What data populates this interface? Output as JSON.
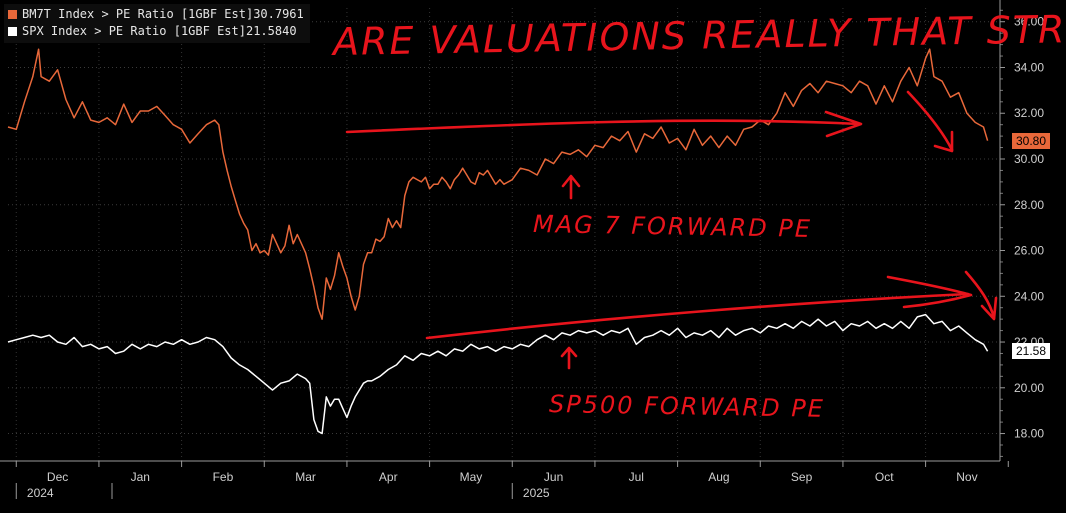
{
  "legend": [
    {
      "label": "BM7T Index > PE Ratio [1GBF Est]",
      "value": "30.7961",
      "color": "#e8683a"
    },
    {
      "label": "SPX Index > PE Ratio [1GBF Est]",
      "value": "21.5840",
      "color": "#ffffff"
    }
  ],
  "badges": {
    "bm7t": "30.80",
    "spx": "21.58"
  },
  "annotations": {
    "title": "ARE VALUATIONS REALLY THAT STRETCHED?",
    "mag7": "MAG 7 FORWARD PE",
    "spx": "SP500 FORWARD PE"
  },
  "chart_data": {
    "type": "line",
    "ylim": [
      16.8,
      36.6
    ],
    "y_ticks": [
      "18.00",
      "20.00",
      "22.00",
      "24.00",
      "26.00",
      "28.00",
      "30.00",
      "32.00",
      "34.00",
      "36.00"
    ],
    "x_ticks": [
      {
        "label": "Dec",
        "sub": "2024",
        "pos": 3.7
      },
      {
        "label": "Jan",
        "pos": 4.7
      },
      {
        "label": "Feb",
        "pos": 5.7
      },
      {
        "label": "Mar",
        "pos": 6.7
      },
      {
        "label": "Apr",
        "pos": 7.7
      },
      {
        "label": "May",
        "pos": 8.7
      },
      {
        "label": "Jun",
        "sub": "2025",
        "pos": 9.7
      },
      {
        "label": "Jul",
        "pos": 10.7
      },
      {
        "label": "Aug",
        "pos": 11.7
      },
      {
        "label": "Sep",
        "pos": 12.7
      },
      {
        "label": "Oct",
        "pos": 13.7
      },
      {
        "label": "Nov",
        "pos": 14.7
      }
    ],
    "x_range": [
      3.1,
      15.1
    ],
    "series": [
      {
        "name": "BM7T Index > PE Ratio [1GBF Est]",
        "color": "#e8683a",
        "points": [
          [
            3.1,
            31.4
          ],
          [
            3.2,
            31.3
          ],
          [
            3.3,
            32.5
          ],
          [
            3.4,
            33.6
          ],
          [
            3.47,
            34.8
          ],
          [
            3.5,
            33.6
          ],
          [
            3.6,
            33.4
          ],
          [
            3.7,
            33.9
          ],
          [
            3.8,
            32.6
          ],
          [
            3.9,
            31.8
          ],
          [
            4.0,
            32.5
          ],
          [
            4.1,
            31.7
          ],
          [
            4.2,
            31.6
          ],
          [
            4.3,
            31.8
          ],
          [
            4.4,
            31.5
          ],
          [
            4.5,
            32.4
          ],
          [
            4.6,
            31.6
          ],
          [
            4.7,
            32.1
          ],
          [
            4.8,
            32.1
          ],
          [
            4.9,
            32.3
          ],
          [
            5.0,
            31.9
          ],
          [
            5.1,
            31.5
          ],
          [
            5.2,
            31.3
          ],
          [
            5.3,
            30.7
          ],
          [
            5.4,
            31.1
          ],
          [
            5.5,
            31.5
          ],
          [
            5.6,
            31.7
          ],
          [
            5.65,
            31.5
          ],
          [
            5.7,
            30.3
          ],
          [
            5.75,
            29.5
          ],
          [
            5.8,
            28.8
          ],
          [
            5.85,
            28.2
          ],
          [
            5.9,
            27.6
          ],
          [
            5.95,
            27.2
          ],
          [
            6.0,
            26.9
          ],
          [
            6.05,
            26.0
          ],
          [
            6.1,
            26.3
          ],
          [
            6.15,
            25.9
          ],
          [
            6.2,
            26.0
          ],
          [
            6.25,
            25.8
          ],
          [
            6.3,
            26.7
          ],
          [
            6.35,
            26.3
          ],
          [
            6.4,
            25.9
          ],
          [
            6.45,
            26.2
          ],
          [
            6.5,
            27.1
          ],
          [
            6.55,
            26.3
          ],
          [
            6.6,
            26.7
          ],
          [
            6.7,
            25.9
          ],
          [
            6.75,
            25.2
          ],
          [
            6.8,
            24.4
          ],
          [
            6.85,
            23.5
          ],
          [
            6.9,
            23.0
          ],
          [
            6.95,
            24.8
          ],
          [
            7.0,
            24.3
          ],
          [
            7.05,
            24.9
          ],
          [
            7.1,
            25.9
          ],
          [
            7.15,
            25.3
          ],
          [
            7.2,
            24.8
          ],
          [
            7.25,
            24.0
          ],
          [
            7.3,
            23.4
          ],
          [
            7.35,
            24.0
          ],
          [
            7.4,
            25.4
          ],
          [
            7.45,
            25.9
          ],
          [
            7.5,
            25.9
          ],
          [
            7.55,
            26.5
          ],
          [
            7.6,
            26.4
          ],
          [
            7.65,
            26.6
          ],
          [
            7.7,
            27.4
          ],
          [
            7.75,
            27.0
          ],
          [
            7.8,
            27.3
          ],
          [
            7.85,
            27.0
          ],
          [
            7.9,
            28.4
          ],
          [
            7.95,
            29.0
          ],
          [
            8.0,
            29.2
          ],
          [
            8.05,
            29.1
          ],
          [
            8.1,
            29.0
          ],
          [
            8.15,
            29.2
          ],
          [
            8.2,
            28.7
          ],
          [
            8.25,
            28.9
          ],
          [
            8.3,
            28.9
          ],
          [
            8.35,
            29.2
          ],
          [
            8.4,
            29.0
          ],
          [
            8.45,
            28.7
          ],
          [
            8.5,
            29.1
          ],
          [
            8.55,
            29.3
          ],
          [
            8.6,
            29.6
          ],
          [
            8.65,
            29.3
          ],
          [
            8.7,
            29.0
          ],
          [
            8.75,
            28.9
          ],
          [
            8.8,
            29.4
          ],
          [
            8.85,
            29.3
          ],
          [
            8.9,
            29.5
          ],
          [
            9.0,
            28.9
          ],
          [
            9.05,
            29.1
          ],
          [
            9.1,
            28.9
          ],
          [
            9.2,
            29.1
          ],
          [
            9.3,
            29.6
          ],
          [
            9.4,
            29.5
          ],
          [
            9.5,
            29.3
          ],
          [
            9.6,
            30.0
          ],
          [
            9.7,
            29.8
          ],
          [
            9.8,
            30.3
          ],
          [
            9.9,
            30.2
          ],
          [
            10.0,
            30.4
          ],
          [
            10.1,
            30.1
          ],
          [
            10.2,
            30.6
          ],
          [
            10.3,
            30.5
          ],
          [
            10.4,
            31.0
          ],
          [
            10.5,
            30.8
          ],
          [
            10.6,
            31.2
          ],
          [
            10.7,
            30.3
          ],
          [
            10.8,
            31.1
          ],
          [
            10.9,
            30.9
          ],
          [
            11.0,
            31.4
          ],
          [
            11.1,
            30.7
          ],
          [
            11.2,
            30.9
          ],
          [
            11.3,
            30.4
          ],
          [
            11.4,
            31.3
          ],
          [
            11.5,
            30.6
          ],
          [
            11.6,
            31.0
          ],
          [
            11.7,
            30.5
          ],
          [
            11.8,
            31.0
          ],
          [
            11.9,
            30.6
          ],
          [
            12.0,
            31.3
          ],
          [
            12.1,
            31.4
          ],
          [
            12.2,
            31.7
          ],
          [
            12.3,
            31.5
          ],
          [
            12.4,
            32.0
          ],
          [
            12.5,
            32.9
          ],
          [
            12.6,
            32.3
          ],
          [
            12.7,
            33.0
          ],
          [
            12.8,
            33.3
          ],
          [
            12.9,
            32.9
          ],
          [
            13.0,
            33.4
          ],
          [
            13.1,
            33.3
          ],
          [
            13.2,
            33.2
          ],
          [
            13.3,
            32.9
          ],
          [
            13.4,
            33.4
          ],
          [
            13.5,
            33.2
          ],
          [
            13.6,
            32.4
          ],
          [
            13.7,
            33.2
          ],
          [
            13.8,
            32.5
          ],
          [
            13.9,
            33.4
          ],
          [
            14.0,
            34.0
          ],
          [
            14.1,
            33.2
          ],
          [
            14.2,
            34.4
          ],
          [
            14.25,
            34.8
          ],
          [
            14.3,
            33.6
          ],
          [
            14.4,
            33.4
          ],
          [
            14.5,
            32.7
          ],
          [
            14.6,
            32.9
          ],
          [
            14.7,
            32.0
          ],
          [
            14.8,
            31.6
          ],
          [
            14.9,
            31.4
          ],
          [
            14.95,
            30.8
          ]
        ]
      },
      {
        "name": "SPX Index > PE Ratio [1GBF Est]",
        "color": "#ffffff",
        "points": [
          [
            3.1,
            22.0
          ],
          [
            3.2,
            22.1
          ],
          [
            3.3,
            22.2
          ],
          [
            3.4,
            22.3
          ],
          [
            3.5,
            22.2
          ],
          [
            3.6,
            22.3
          ],
          [
            3.7,
            22.0
          ],
          [
            3.8,
            21.9
          ],
          [
            3.9,
            22.2
          ],
          [
            4.0,
            21.8
          ],
          [
            4.1,
            21.9
          ],
          [
            4.2,
            21.7
          ],
          [
            4.3,
            21.8
          ],
          [
            4.4,
            21.5
          ],
          [
            4.5,
            21.6
          ],
          [
            4.6,
            21.9
          ],
          [
            4.7,
            21.7
          ],
          [
            4.8,
            21.9
          ],
          [
            4.9,
            21.8
          ],
          [
            5.0,
            22.0
          ],
          [
            5.1,
            21.9
          ],
          [
            5.2,
            22.1
          ],
          [
            5.3,
            21.9
          ],
          [
            5.4,
            22.0
          ],
          [
            5.5,
            22.2
          ],
          [
            5.6,
            22.1
          ],
          [
            5.7,
            21.8
          ],
          [
            5.8,
            21.3
          ],
          [
            5.9,
            21.0
          ],
          [
            6.0,
            20.8
          ],
          [
            6.1,
            20.5
          ],
          [
            6.2,
            20.2
          ],
          [
            6.3,
            19.9
          ],
          [
            6.4,
            20.2
          ],
          [
            6.5,
            20.3
          ],
          [
            6.6,
            20.6
          ],
          [
            6.7,
            20.4
          ],
          [
            6.75,
            20.2
          ],
          [
            6.8,
            18.6
          ],
          [
            6.85,
            18.1
          ],
          [
            6.9,
            18.0
          ],
          [
            6.95,
            19.6
          ],
          [
            7.0,
            19.2
          ],
          [
            7.05,
            19.5
          ],
          [
            7.1,
            19.5
          ],
          [
            7.15,
            19.1
          ],
          [
            7.2,
            18.7
          ],
          [
            7.25,
            19.2
          ],
          [
            7.3,
            19.6
          ],
          [
            7.35,
            19.9
          ],
          [
            7.4,
            20.2
          ],
          [
            7.45,
            20.3
          ],
          [
            7.5,
            20.3
          ],
          [
            7.6,
            20.5
          ],
          [
            7.7,
            20.8
          ],
          [
            7.8,
            21.0
          ],
          [
            7.9,
            21.4
          ],
          [
            8.0,
            21.2
          ],
          [
            8.1,
            21.5
          ],
          [
            8.2,
            21.4
          ],
          [
            8.3,
            21.6
          ],
          [
            8.4,
            21.4
          ],
          [
            8.5,
            21.7
          ],
          [
            8.6,
            21.6
          ],
          [
            8.7,
            21.9
          ],
          [
            8.8,
            21.7
          ],
          [
            8.9,
            21.8
          ],
          [
            9.0,
            21.6
          ],
          [
            9.1,
            21.8
          ],
          [
            9.2,
            21.7
          ],
          [
            9.3,
            21.9
          ],
          [
            9.4,
            21.8
          ],
          [
            9.5,
            22.1
          ],
          [
            9.6,
            22.3
          ],
          [
            9.7,
            22.1
          ],
          [
            9.8,
            22.4
          ],
          [
            9.9,
            22.3
          ],
          [
            10.0,
            22.5
          ],
          [
            10.1,
            22.4
          ],
          [
            10.2,
            22.5
          ],
          [
            10.3,
            22.3
          ],
          [
            10.4,
            22.5
          ],
          [
            10.5,
            22.4
          ],
          [
            10.6,
            22.6
          ],
          [
            10.7,
            21.9
          ],
          [
            10.8,
            22.2
          ],
          [
            10.9,
            22.3
          ],
          [
            11.0,
            22.5
          ],
          [
            11.1,
            22.3
          ],
          [
            11.2,
            22.6
          ],
          [
            11.3,
            22.2
          ],
          [
            11.4,
            22.4
          ],
          [
            11.5,
            22.3
          ],
          [
            11.6,
            22.5
          ],
          [
            11.7,
            22.2
          ],
          [
            11.8,
            22.6
          ],
          [
            11.9,
            22.3
          ],
          [
            12.0,
            22.5
          ],
          [
            12.1,
            22.6
          ],
          [
            12.2,
            22.4
          ],
          [
            12.3,
            22.7
          ],
          [
            12.4,
            22.6
          ],
          [
            12.5,
            22.8
          ],
          [
            12.6,
            22.6
          ],
          [
            12.7,
            22.9
          ],
          [
            12.8,
            22.7
          ],
          [
            12.9,
            23.0
          ],
          [
            13.0,
            22.7
          ],
          [
            13.1,
            22.9
          ],
          [
            13.2,
            22.5
          ],
          [
            13.3,
            22.8
          ],
          [
            13.4,
            22.7
          ],
          [
            13.5,
            22.9
          ],
          [
            13.6,
            22.6
          ],
          [
            13.7,
            22.8
          ],
          [
            13.8,
            22.6
          ],
          [
            13.9,
            22.9
          ],
          [
            14.0,
            22.6
          ],
          [
            14.1,
            23.1
          ],
          [
            14.2,
            23.2
          ],
          [
            14.3,
            22.8
          ],
          [
            14.4,
            22.9
          ],
          [
            14.5,
            22.5
          ],
          [
            14.6,
            22.7
          ],
          [
            14.7,
            22.4
          ],
          [
            14.8,
            22.1
          ],
          [
            14.9,
            21.9
          ],
          [
            14.95,
            21.6
          ]
        ]
      }
    ]
  }
}
